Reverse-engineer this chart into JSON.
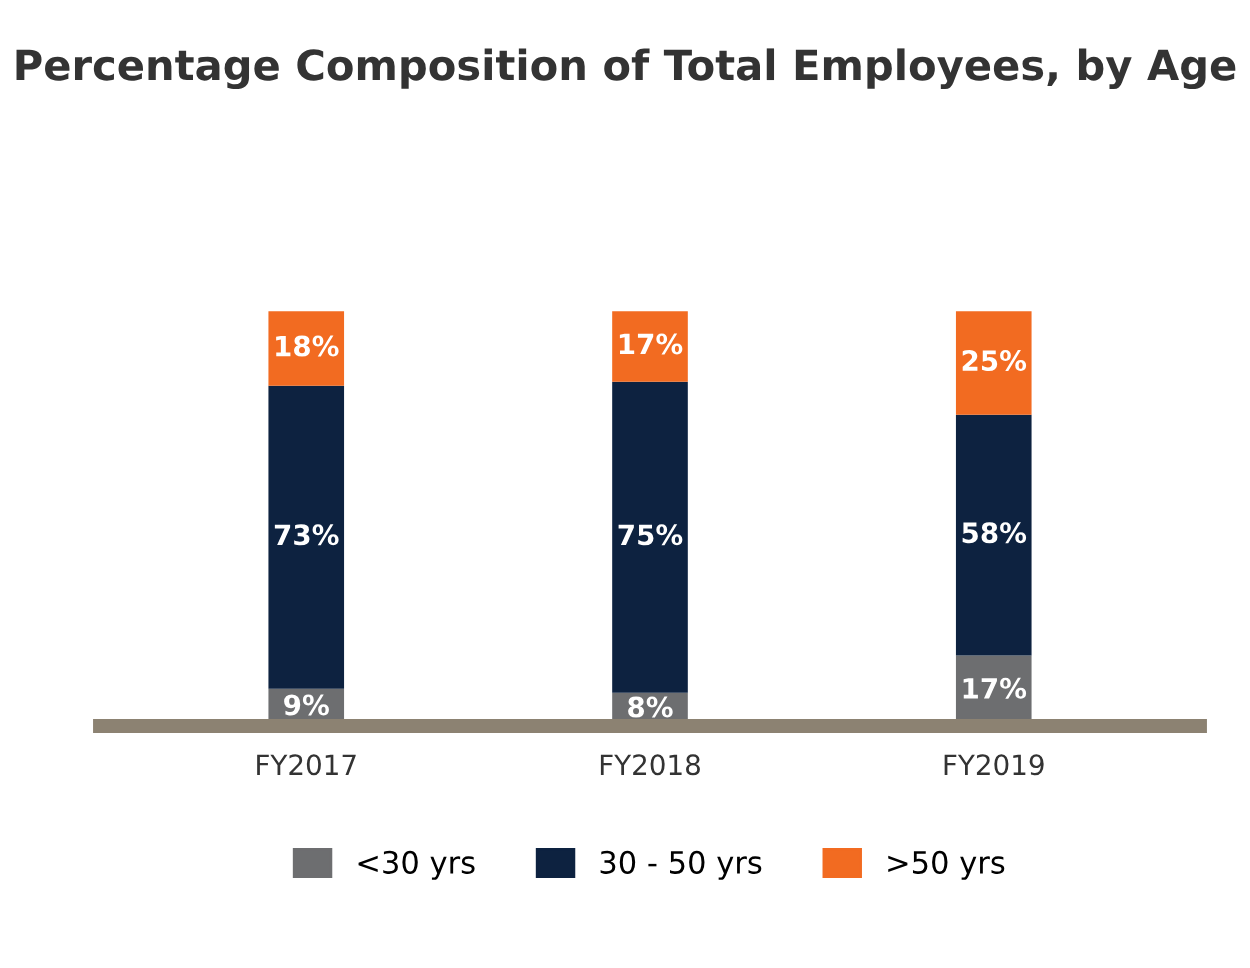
{
  "chart_data": {
    "type": "bar",
    "title": "Percentage Composition of Total Employees, by Age",
    "categories": [
      "FY2017",
      "FY2018",
      "FY2019"
    ],
    "stacked": true,
    "legend": "bottom",
    "grid": false,
    "series": [
      {
        "name": "<30 yrs",
        "color": "#6d6e70",
        "values": [
          9,
          8,
          17
        ],
        "value_labels": [
          "9%",
          "8%",
          "17%"
        ]
      },
      {
        "name": "30 - 50 yrs",
        "color": "#0d2240",
        "values": [
          73,
          75,
          58
        ],
        "value_labels": [
          "73%",
          "75%",
          "58%"
        ]
      },
      {
        "name": ">50 yrs",
        "color": "#f26b21",
        "values": [
          18,
          17,
          25
        ],
        "value_labels": [
          "18%",
          "17%",
          "25%"
        ]
      }
    ]
  }
}
